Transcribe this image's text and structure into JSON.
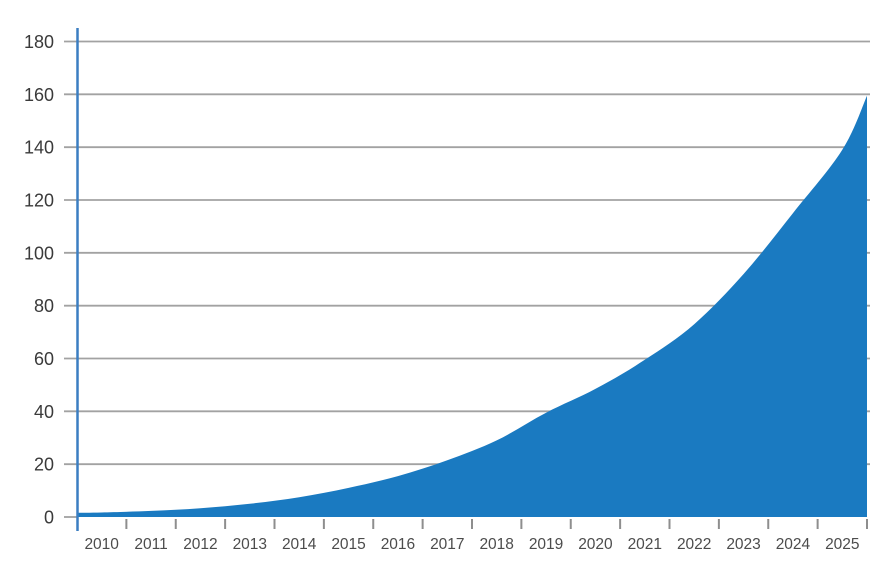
{
  "chart_data": {
    "type": "area",
    "title": "",
    "xlabel": "",
    "ylabel": "",
    "categories": [
      "2010",
      "2011",
      "2012",
      "2013",
      "2014",
      "2015",
      "2016",
      "2017",
      "2018",
      "2019",
      "2020",
      "2021",
      "2022",
      "2023",
      "2024",
      "2025"
    ],
    "values": [
      1.7,
      2.3,
      3.3,
      5,
      7.5,
      11,
      15.5,
      21.5,
      29,
      39.5,
      48.5,
      59.5,
      73,
      92,
      115,
      139
    ],
    "left_edge_value": 1.6,
    "right_edge_value": 159.5,
    "ylim": [
      0,
      180
    ],
    "y_ticks": [
      0,
      20,
      40,
      60,
      80,
      100,
      120,
      140,
      160,
      180
    ],
    "grid": "horizontal-only",
    "legend": "none",
    "colors": {
      "area": "#1a7ac1",
      "y_axis": "#3b7ec2",
      "gridline": "#a2a2a2",
      "tick": "#8e8e8e",
      "y_label": "#3a3a3a",
      "x_label": "#4c4c4c",
      "background": "#ffffff"
    }
  }
}
